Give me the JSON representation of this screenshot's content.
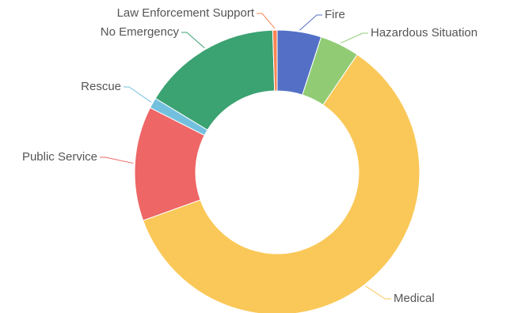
{
  "chart_data": {
    "type": "pie",
    "donut": true,
    "title": "",
    "legend": "none",
    "start_angle_deg": 0,
    "direction": "clockwise",
    "slices": [
      {
        "label": "Fire",
        "value": 5.0,
        "color": "#5470c6"
      },
      {
        "label": "Hazardous Situation",
        "value": 4.5,
        "color": "#91cc75"
      },
      {
        "label": "Medical",
        "value": 60.0,
        "color": "#fac858"
      },
      {
        "label": "Public Service",
        "value": 13.0,
        "color": "#ee6666"
      },
      {
        "label": "Rescue",
        "value": 1.2,
        "color": "#73c0de"
      },
      {
        "label": "No Emergency",
        "value": 15.8,
        "color": "#3ba272"
      },
      {
        "label": "Law Enforcement Support",
        "value": 0.5,
        "color": "#fc8452"
      }
    ]
  }
}
